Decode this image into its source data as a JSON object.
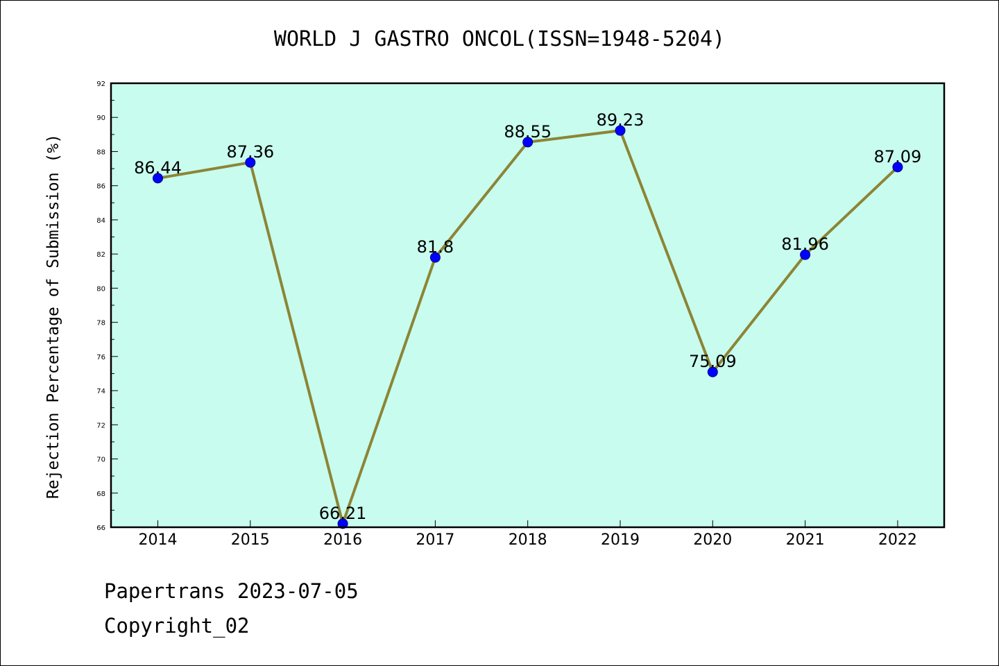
{
  "chart_data": {
    "type": "line",
    "title": "WORLD J GASTRO ONCOL(ISSN=1948-5204)",
    "xlabel": "",
    "ylabel": "Rejection Percentage of Submission (%)",
    "categories": [
      "2014",
      "2015",
      "2016",
      "2017",
      "2018",
      "2019",
      "2020",
      "2021",
      "2022"
    ],
    "series": [
      {
        "values": [
          86.44,
          87.36,
          66.21,
          81.8,
          88.55,
          89.23,
          75.09,
          81.96,
          87.09
        ],
        "labels": [
          "86.44",
          "87.36",
          "66.21",
          "81.8",
          "88.55",
          "89.23",
          "75.09",
          "81.96",
          "87.09"
        ]
      }
    ],
    "ylim": [
      66,
      92
    ],
    "yticks": [
      "66",
      "68",
      "70",
      "72",
      "74",
      "76",
      "78",
      "80",
      "82",
      "84",
      "86",
      "88",
      "90",
      "92"
    ],
    "grid": false,
    "colors": {
      "plot_background": "#c8fcee",
      "line": "#8c8536",
      "marker": "#0000ff"
    }
  },
  "footer": {
    "source": "Papertrans 2023-07-05",
    "copyright": "Copyright_02"
  }
}
